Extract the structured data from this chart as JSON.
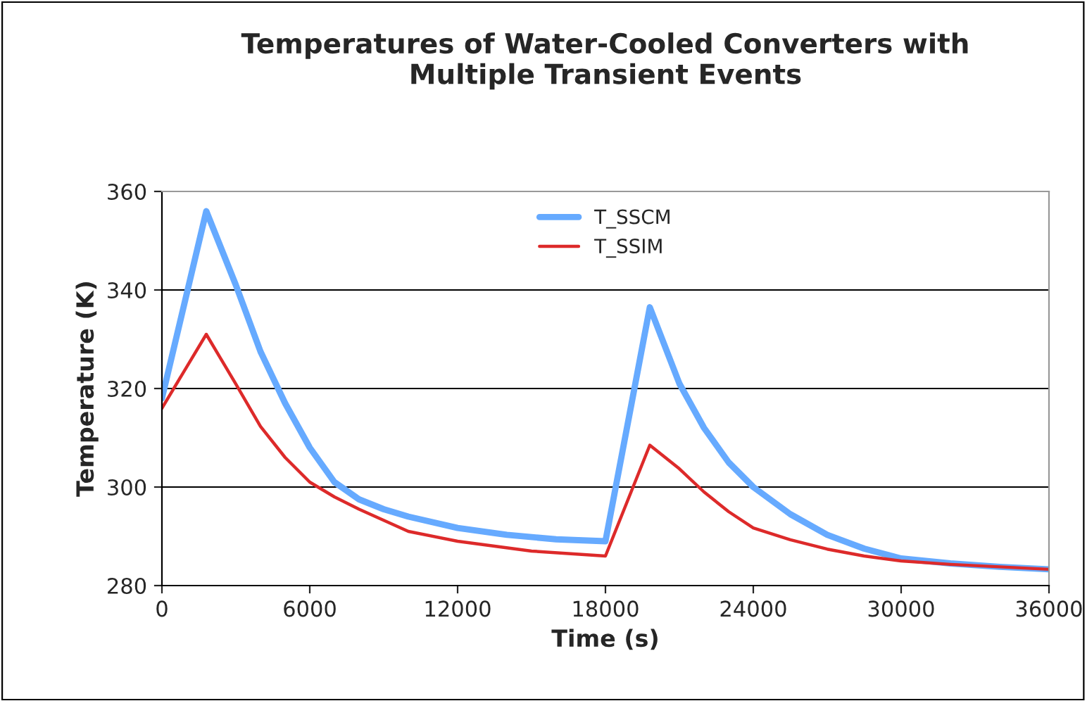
{
  "chart_data": {
    "type": "line",
    "title": "Temperatures of Water-Cooled Converters with\nMultiple Transient Events",
    "xlabel": "Time (s)",
    "ylabel": "Temperature (K)",
    "xlim": [
      0,
      36000
    ],
    "xticks": [
      0,
      6000,
      12000,
      18000,
      24000,
      30000,
      36000
    ],
    "ylim": [
      280,
      360
    ],
    "yticks": [
      280,
      300,
      320,
      340,
      360
    ],
    "grid": "y",
    "legend": "top",
    "marker": "none",
    "line_style": "solid",
    "series": [
      {
        "name": "T_SSCM",
        "color": "#66aaff",
        "x": [
          0,
          1800,
          3000,
          4000,
          5000,
          6000,
          7000,
          8000,
          9000,
          10000,
          12000,
          14000,
          16000,
          18000,
          19800,
          21000,
          22000,
          23000,
          24000,
          25500,
          27000,
          28500,
          30000,
          32000,
          34000,
          36000
        ],
        "values": [
          318,
          356,
          341,
          327.5,
          317,
          308,
          301,
          297.5,
          295.5,
          294,
          291.7,
          290.3,
          289.4,
          289,
          336.5,
          321,
          312,
          305,
          300,
          294.5,
          290.3,
          287.5,
          285.5,
          284.5,
          283.8,
          283.3
        ]
      },
      {
        "name": "T_SSIM",
        "color": "#dd2a2a",
        "x": [
          0,
          1800,
          3000,
          4000,
          5000,
          6000,
          7000,
          8000,
          10000,
          12000,
          15000,
          18000,
          19800,
          21000,
          22000,
          23000,
          24000,
          25500,
          27000,
          28500,
          30000,
          32000,
          34000,
          36000
        ],
        "values": [
          316,
          331,
          320.9,
          312.3,
          306,
          301,
          298,
          295.5,
          291,
          289,
          287,
          286,
          308.5,
          303.7,
          299,
          295,
          291.7,
          289.3,
          287.4,
          286,
          285,
          284.3,
          283.8,
          283.3
        ]
      }
    ]
  }
}
